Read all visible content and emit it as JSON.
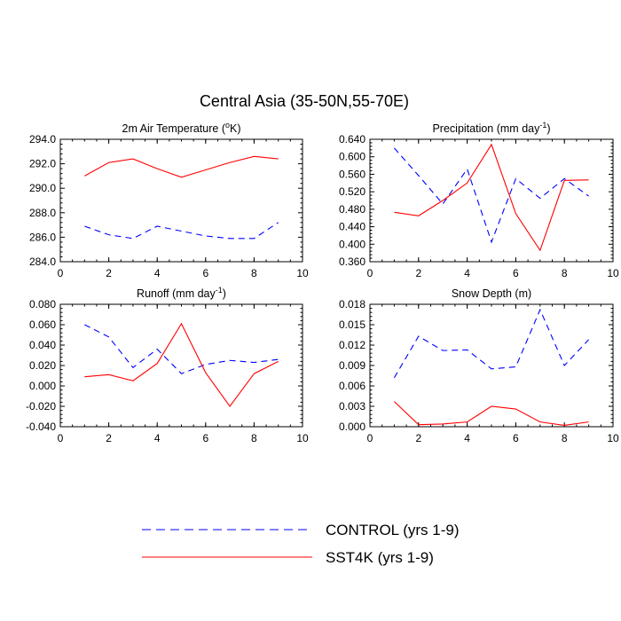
{
  "figure": {
    "title": "Central Asia (35-50N,55-70E)",
    "legend": [
      {
        "label": "CONTROL (yrs 1-9)",
        "color": "#0000ff",
        "dash": true
      },
      {
        "label": "SST4K (yrs 1-9)",
        "color": "#ff0000",
        "dash": false
      }
    ]
  },
  "chart_data": [
    {
      "type": "line",
      "title_main": "2m Air Temperature (",
      "title_sup": "o",
      "title_end": "K)",
      "xlim": [
        0,
        10
      ],
      "ylim": [
        284,
        294
      ],
      "xticks": [
        "0",
        "2",
        "4",
        "6",
        "8",
        "10"
      ],
      "xtick_values": [
        0,
        2,
        4,
        6,
        8,
        10
      ],
      "yticks": [
        "284.0",
        "286.0",
        "288.0",
        "290.0",
        "292.0",
        "294.0"
      ],
      "ytick_values": [
        284,
        286,
        288,
        290,
        292,
        294
      ],
      "x": [
        1,
        2,
        3,
        4,
        5,
        6,
        7,
        8,
        9
      ],
      "series": [
        {
          "name": "CONTROL (yrs 1-9)",
          "values": [
            286.9,
            286.2,
            285.9,
            286.9,
            286.5,
            286.1,
            285.9,
            285.9,
            287.2
          ]
        },
        {
          "name": "SST4K (yrs 1-9)",
          "values": [
            291.0,
            292.1,
            292.4,
            291.6,
            290.9,
            291.5,
            292.1,
            292.6,
            292.4
          ]
        }
      ]
    },
    {
      "type": "line",
      "title_main": "Precipitation (mm day",
      "title_sup": "-1",
      "title_end": ")",
      "xlim": [
        0,
        10
      ],
      "ylim": [
        0.36,
        0.64
      ],
      "xticks": [
        "0",
        "2",
        "4",
        "6",
        "8",
        "10"
      ],
      "xtick_values": [
        0,
        2,
        4,
        6,
        8,
        10
      ],
      "yticks": [
        "0.360",
        "0.400",
        "0.440",
        "0.480",
        "0.520",
        "0.560",
        "0.600",
        "0.640"
      ],
      "ytick_values": [
        0.36,
        0.4,
        0.44,
        0.48,
        0.52,
        0.56,
        0.6,
        0.64
      ],
      "x": [
        1,
        2,
        3,
        4,
        5,
        6,
        7,
        8,
        9
      ],
      "series": [
        {
          "name": "CONTROL (yrs 1-9)",
          "values": [
            0.62,
            0.557,
            0.492,
            0.572,
            0.405,
            0.55,
            0.505,
            0.55,
            0.51
          ]
        },
        {
          "name": "SST4K (yrs 1-9)",
          "values": [
            0.473,
            0.465,
            0.5,
            0.54,
            0.628,
            0.47,
            0.386,
            0.546,
            0.547
          ]
        }
      ]
    },
    {
      "type": "line",
      "title_main": "Runoff (mm day",
      "title_sup": "-1",
      "title_end": ")",
      "xlim": [
        0,
        10
      ],
      "ylim": [
        -0.04,
        0.08
      ],
      "xticks": [
        "0",
        "2",
        "4",
        "6",
        "8",
        "10"
      ],
      "xtick_values": [
        0,
        2,
        4,
        6,
        8,
        10
      ],
      "yticks": [
        "-0.040",
        "-0.020",
        "0.000",
        "0.020",
        "0.040",
        "0.060",
        "0.080"
      ],
      "ytick_values": [
        -0.04,
        -0.02,
        0.0,
        0.02,
        0.04,
        0.06,
        0.08
      ],
      "x": [
        1,
        2,
        3,
        4,
        5,
        6,
        7,
        8,
        9
      ],
      "series": [
        {
          "name": "CONTROL (yrs 1-9)",
          "values": [
            0.06,
            0.048,
            0.018,
            0.036,
            0.012,
            0.021,
            0.025,
            0.023,
            0.026
          ]
        },
        {
          "name": "SST4K (yrs 1-9)",
          "values": [
            0.009,
            0.011,
            0.005,
            0.022,
            0.061,
            0.013,
            -0.02,
            0.012,
            0.024
          ]
        }
      ]
    },
    {
      "type": "line",
      "title_main": "Snow Depth (m)",
      "title_sup": "",
      "title_end": "",
      "xlim": [
        0,
        10
      ],
      "ylim": [
        0,
        0.018
      ],
      "xticks": [
        "0",
        "2",
        "4",
        "6",
        "8",
        "10"
      ],
      "xtick_values": [
        0,
        2,
        4,
        6,
        8,
        10
      ],
      "yticks": [
        "0.000",
        "0.003",
        "0.006",
        "0.009",
        "0.012",
        "0.015",
        "0.018"
      ],
      "ytick_values": [
        0,
        0.003,
        0.006,
        0.009,
        0.012,
        0.015,
        0.018
      ],
      "x": [
        1,
        2,
        3,
        4,
        5,
        6,
        7,
        8,
        9
      ],
      "series": [
        {
          "name": "CONTROL (yrs 1-9)",
          "values": [
            0.0072,
            0.0133,
            0.0112,
            0.0113,
            0.0085,
            0.0088,
            0.0172,
            0.009,
            0.0128
          ]
        },
        {
          "name": "SST4K (yrs 1-9)",
          "values": [
            0.0037,
            0.0003,
            0.0004,
            0.0007,
            0.003,
            0.0026,
            0.0007,
            0.0002,
            0.0007
          ]
        }
      ]
    }
  ]
}
